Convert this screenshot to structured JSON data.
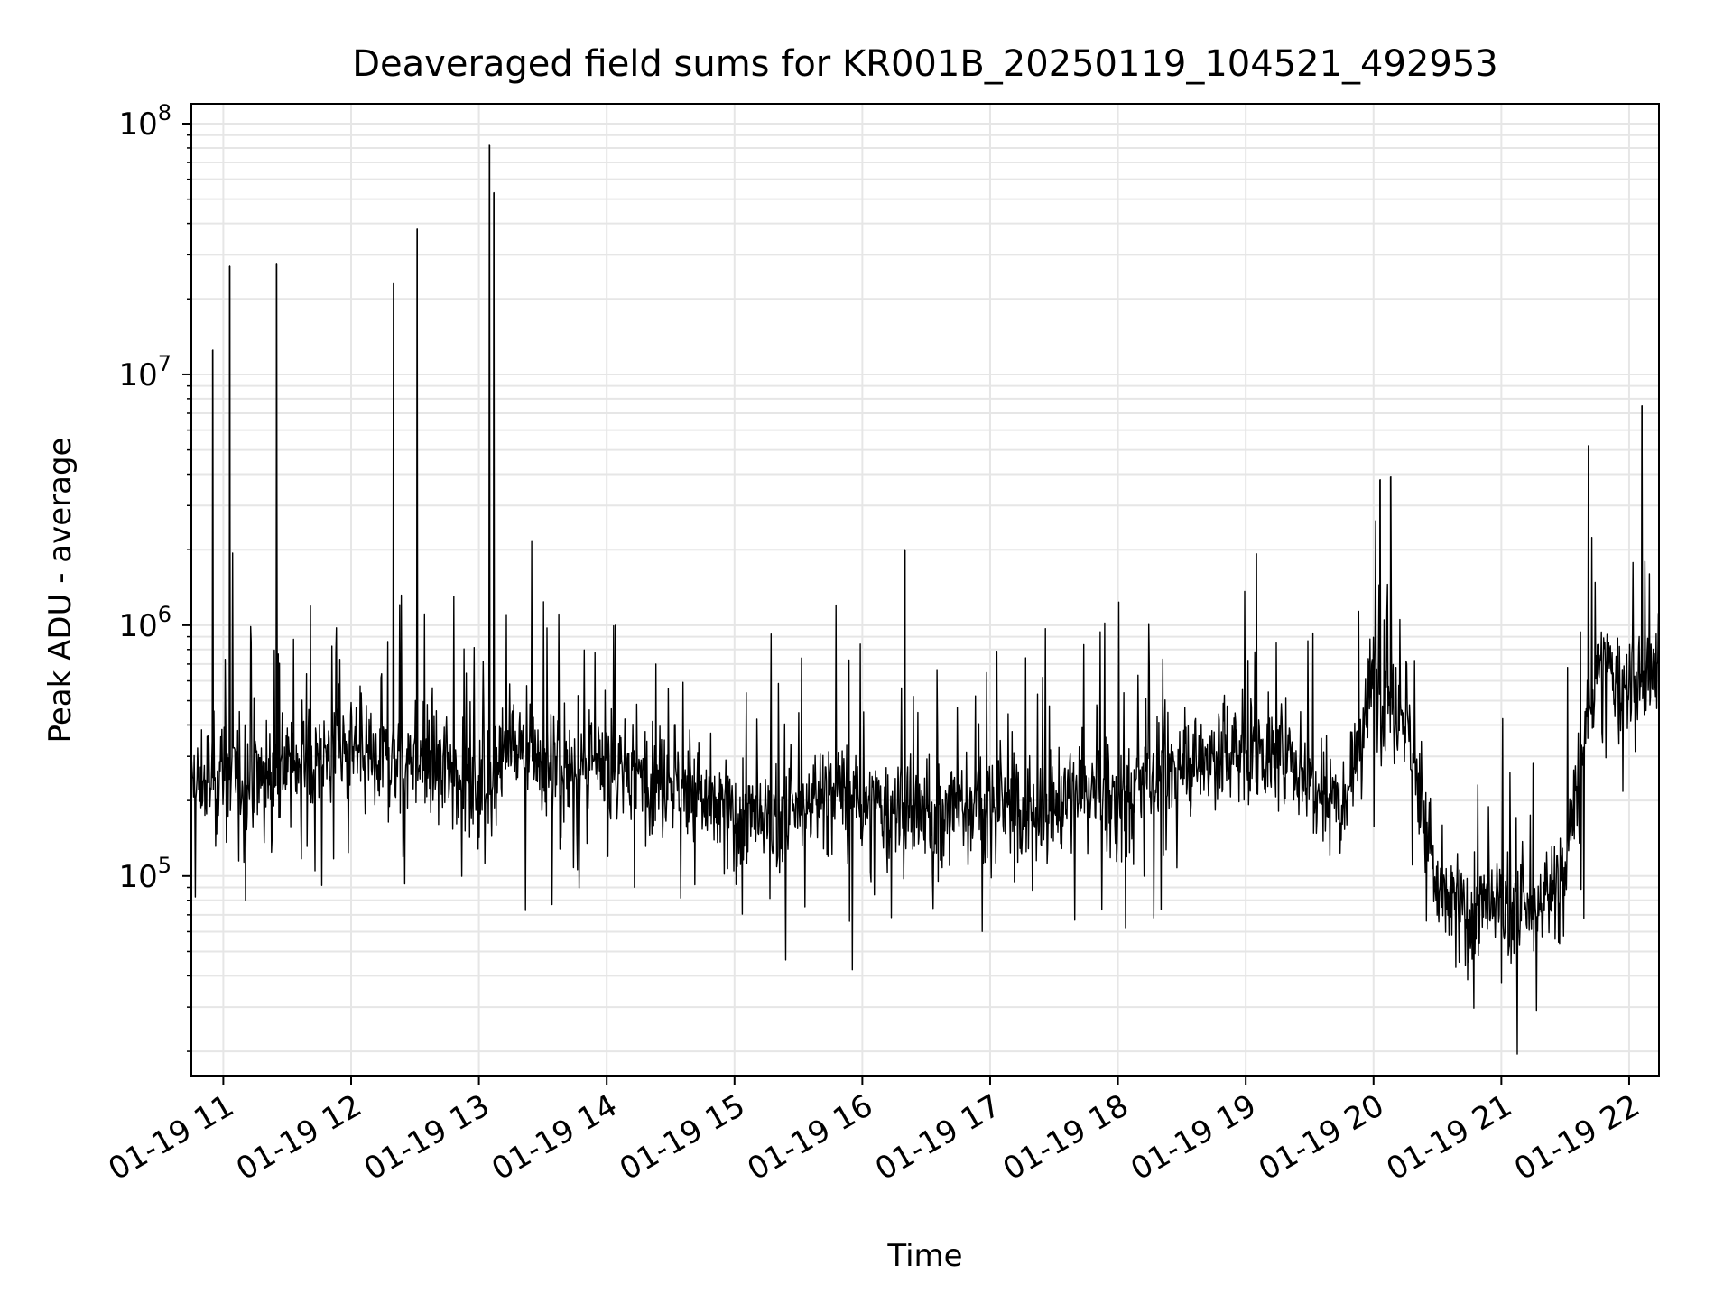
{
  "chart_data": {
    "type": "line",
    "title": "Deaveraged field sums for KR001B_20250119_104521_492953",
    "xlabel": "Time",
    "ylabel": "Peak ADU - average",
    "yscale": "log",
    "grid": "major and minor",
    "xlim": [
      "2025-01-19 10:45",
      "2025-01-19 22:14"
    ],
    "ylim": [
      16000,
      120000000
    ],
    "x_ticks": [
      "01-19 11",
      "01-19 12",
      "01-19 13",
      "01-19 14",
      "01-19 15",
      "01-19 16",
      "01-19 17",
      "01-19 18",
      "01-19 19",
      "01-19 20",
      "01-19 21",
      "01-19 22"
    ],
    "y_ticks": [
      {
        "value": 100000,
        "base": "10",
        "exp": "5"
      },
      {
        "value": 1000000,
        "base": "10",
        "exp": "6"
      },
      {
        "value": 10000000,
        "base": "10",
        "exp": "7"
      },
      {
        "value": 100000000,
        "base": "10",
        "exp": "8"
      }
    ],
    "line_color": "#000000",
    "series": [
      {
        "x": [
          "2025-01-19 10:45",
          "2025-01-19 11:00",
          "2025-01-19 11:15",
          "2025-01-19 11:30",
          "2025-01-19 11:45",
          "2025-01-19 12:00",
          "2025-01-19 12:15",
          "2025-01-19 12:30",
          "2025-01-19 12:45",
          "2025-01-19 13:00",
          "2025-01-19 13:15",
          "2025-01-19 13:30",
          "2025-01-19 13:45",
          "2025-01-19 14:00",
          "2025-01-19 14:15",
          "2025-01-19 14:30",
          "2025-01-19 14:45",
          "2025-01-19 15:00",
          "2025-01-19 15:15",
          "2025-01-19 15:30",
          "2025-01-19 15:45",
          "2025-01-19 16:00",
          "2025-01-19 16:15",
          "2025-01-19 16:30",
          "2025-01-19 16:45",
          "2025-01-19 17:00",
          "2025-01-19 17:15",
          "2025-01-19 17:30",
          "2025-01-19 17:45",
          "2025-01-19 18:00",
          "2025-01-19 18:15",
          "2025-01-19 18:30",
          "2025-01-19 18:45",
          "2025-01-19 19:00",
          "2025-01-19 19:15",
          "2025-01-19 19:30",
          "2025-01-19 19:45",
          "2025-01-19 20:00",
          "2025-01-19 20:15",
          "2025-01-19 20:30",
          "2025-01-19 20:45",
          "2025-01-19 21:00",
          "2025-01-19 21:15",
          "2025-01-19 21:30",
          "2025-01-19 21:45",
          "2025-01-19 22:00",
          "2025-01-19 22:14"
        ],
        "values": [
          220000,
          260000,
          250000,
          280000,
          300000,
          320000,
          290000,
          300000,
          280000,
          230000,
          330000,
          280000,
          260000,
          270000,
          260000,
          250000,
          200000,
          170000,
          160000,
          180000,
          230000,
          190000,
          180000,
          170000,
          190000,
          200000,
          180000,
          190000,
          220000,
          200000,
          240000,
          280000,
          300000,
          330000,
          300000,
          260000,
          200000,
          600000,
          450000,
          85000,
          70000,
          75000,
          70000,
          110000,
          700000,
          550000,
          650000
        ]
      }
    ],
    "spikes": [
      {
        "x": "2025-01-19 10:55",
        "y": 12500000
      },
      {
        "x": "2025-01-19 11:03",
        "y": 27000000
      },
      {
        "x": "2025-01-19 11:25",
        "y": 27500000
      },
      {
        "x": "2025-01-19 12:20",
        "y": 23000000
      },
      {
        "x": "2025-01-19 12:31",
        "y": 38000000
      },
      {
        "x": "2025-01-19 13:05",
        "y": 82000000
      },
      {
        "x": "2025-01-19 13:07",
        "y": 53000000
      },
      {
        "x": "2025-01-19 16:20",
        "y": 2000000
      },
      {
        "x": "2025-01-19 20:03",
        "y": 3800000
      },
      {
        "x": "2025-01-19 20:08",
        "y": 3900000
      },
      {
        "x": "2025-01-19 21:41",
        "y": 5200000
      },
      {
        "x": "2025-01-19 22:06",
        "y": 7500000
      }
    ]
  }
}
